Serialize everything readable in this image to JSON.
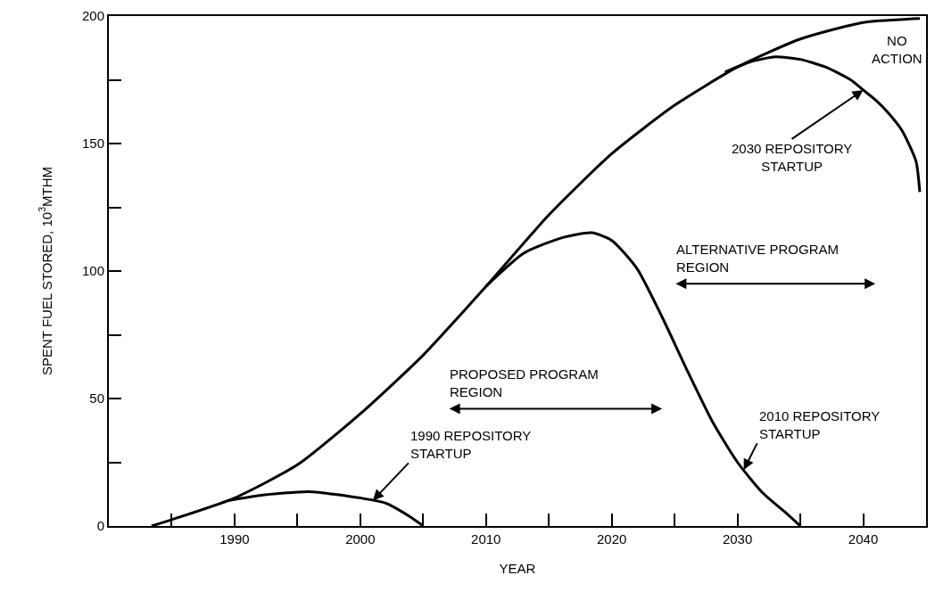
{
  "chart_data": {
    "type": "line",
    "xlabel": "YEAR",
    "ylabel": "SPENT FUEL STORED, 10$^{3}$MTHM",
    "xlim": [
      1980,
      2045
    ],
    "ylim": [
      0,
      200
    ],
    "xticks": [
      {
        "value": 1985,
        "label": null
      },
      1990,
      {
        "value": 1995,
        "label": null
      },
      2000,
      {
        "value": 2005,
        "label": null
      },
      2010,
      {
        "value": 2015,
        "label": null
      },
      2020,
      {
        "value": 2025,
        "label": null
      },
      2030,
      {
        "value": 2035,
        "label": null
      },
      2040
    ],
    "yticks": [
      0,
      {
        "value": 25,
        "label": null
      },
      50,
      {
        "value": 75,
        "label": null
      },
      100,
      {
        "value": 125,
        "label": null
      },
      150,
      {
        "value": 175,
        "label": null
      },
      200
    ],
    "marker": "none",
    "line_style": "solid",
    "series": [
      {
        "color": "#000000",
        "x": [
          1983.4,
          1985,
          1990,
          1995,
          2000,
          2005,
          2010,
          2015,
          2020,
          2025,
          2030,
          2035,
          2040,
          2044.5
        ],
        "values": [
          0,
          2.5,
          11,
          24,
          44,
          67,
          94,
          122,
          146,
          165,
          180,
          191,
          197.5,
          199
        ]
      },
      {
        "color": "#000000",
        "x": [
          2029,
          2031,
          2033,
          2035,
          2037,
          2039,
          2040,
          2041,
          2042,
          2043.1,
          2044.2,
          2044.5
        ],
        "values": [
          178,
          182,
          184,
          183,
          180,
          175,
          171,
          167,
          162,
          155,
          143,
          131
        ]
      },
      {
        "color": "#000000",
        "x": [
          2010,
          2013,
          2016,
          2018.4,
          2020,
          2022,
          2024,
          2026,
          2028,
          2030,
          2032,
          2034,
          2035
        ],
        "values": [
          94,
          107,
          113,
          115,
          112,
          101,
          82,
          61,
          41,
          25,
          13,
          4.5,
          0
        ]
      },
      {
        "color": "#000000",
        "x": [
          1989.5,
          1992,
          1995.9,
          2000,
          2002,
          2004,
          2005
        ],
        "values": [
          10,
          12,
          13.5,
          11,
          9,
          3.5,
          0
        ]
      }
    ],
    "annotations": [
      "NO\nACTION",
      {
        "text": "2030 REPOSITORY\nSTARTUP",
        "x": 2040,
        "y": 171
      },
      {
        "text": "2010 REPOSITORY\nSTARTUP",
        "x": 2030.5,
        "y": 22
      },
      {
        "text": "1990 REPOSITORY\nSTARTUP",
        "x": 2001,
        "y": 10
      },
      "PROPOSED PROGRAM\nREGION",
      "ALTERNATIVE PROGRAM\nREGION"
    ]
  }
}
